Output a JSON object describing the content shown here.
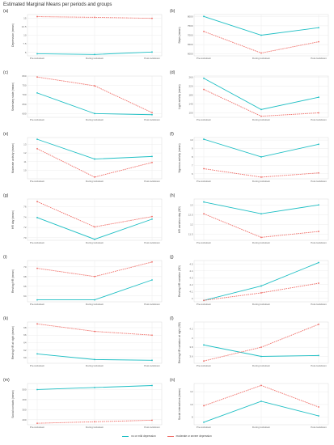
{
  "page": {
    "title": "Estimated Marginal Means per periods and groups"
  },
  "legend": {
    "items": [
      {
        "label": "no or mild depression",
        "color": "#1fbfc4"
      },
      {
        "label": "moderate or severe depression",
        "color": "#f0706a"
      }
    ]
  },
  "chart_data": [
    {
      "panel": "(a)",
      "type": "line",
      "ylabel": "Depression (mean)",
      "categories": [
        "Pre-lockdown",
        "During lockdown",
        "Post-lockdown"
      ],
      "ylim": [
        4,
        16
      ],
      "yticks": [
        5.0,
        7.5,
        10.0,
        12.5,
        15.0
      ],
      "series": [
        {
          "name": "no or mild depression",
          "values": [
            4.6,
            4.4,
            5.1
          ]
        },
        {
          "name": "moderate or severe depression",
          "values": [
            15.4,
            15.2,
            14.9
          ]
        }
      ]
    },
    {
      "panel": "(b)",
      "type": "line",
      "ylabel": "Steps (mean)",
      "categories": [
        "Pre-lockdown",
        "During lockdown",
        "Post-lockdown"
      ],
      "ylim": [
        5900,
        8100
      ],
      "yticks": [
        6000,
        6500,
        7000,
        7500,
        8000
      ],
      "series": [
        {
          "name": "no or mild depression",
          "values": [
            8000,
            7000,
            7400
          ]
        },
        {
          "name": "moderate or severe depression",
          "values": [
            7200,
            6050,
            6650
          ]
        }
      ]
    },
    {
      "panel": "(c)",
      "type": "line",
      "ylabel": "Sedentary state (mean)",
      "categories": [
        "Pre-lockdown",
        "During lockdown",
        "Post-lockdown"
      ],
      "ylim": [
        580,
        800
      ],
      "yticks": [
        600,
        650,
        700,
        750,
        800
      ],
      "series": [
        {
          "name": "no or mild depression",
          "values": [
            710,
            600,
            594
          ]
        },
        {
          "name": "moderate or severe depression",
          "values": [
            795,
            748,
            605
          ]
        }
      ]
    },
    {
      "panel": "(d)",
      "type": "line",
      "ylabel": "Light activity (mean)",
      "categories": [
        "Pre-lockdown",
        "During lockdown",
        "Post-lockdown"
      ],
      "ylim": [
        80,
        265
      ],
      "yticks": [
        100,
        140,
        180,
        220,
        260
      ],
      "series": [
        {
          "name": "no or mild depression",
          "values": [
            255,
            115,
            170
          ]
        },
        {
          "name": "moderate or severe depression",
          "values": [
            205,
            85,
            100
          ]
        }
      ]
    },
    {
      "panel": "(e)",
      "type": "line",
      "ylabel": "Moderate activity (mean)",
      "categories": [
        "Pre-lockdown",
        "During lockdown",
        "Post-lockdown"
      ],
      "ylim": [
        9.0,
        13.8
      ],
      "yticks": [
        10,
        11,
        12,
        13
      ],
      "series": [
        {
          "name": "no or mild depression",
          "values": [
            13.6,
            11.3,
            11.6
          ]
        },
        {
          "name": "moderate or severe depression",
          "values": [
            12.5,
            9.2,
            10.9
          ]
        }
      ]
    },
    {
      "panel": "(f)",
      "type": "line",
      "ylabel": "Vigorous activity (mean)",
      "categories": [
        "Pre-lockdown",
        "During lockdown",
        "Post-lockdown"
      ],
      "ylim": [
        5.4,
        10.3
      ],
      "yticks": [
        6,
        7,
        8,
        9,
        10
      ],
      "series": [
        {
          "name": "no or mild depression",
          "values": [
            10.1,
            8.0,
            9.5
          ]
        },
        {
          "name": "moderate or severe depression",
          "values": [
            6.6,
            5.6,
            6.1
          ]
        }
      ]
    },
    {
      "panel": "(g)",
      "type": "line",
      "ylabel": "HR day (mean)",
      "categories": [
        "Pre-lockdown",
        "During lockdown",
        "Post-lockdown"
      ],
      "ylim": [
        69.5,
        77.5
      ],
      "yticks": [
        70,
        72,
        74,
        76
      ],
      "series": [
        {
          "name": "no or mild depression",
          "values": [
            73.9,
            69.7,
            73.6
          ]
        },
        {
          "name": "moderate or severe depression",
          "values": [
            77.0,
            72.1,
            74.1
          ]
        }
      ]
    },
    {
      "panel": "(h)",
      "type": "line",
      "ylabel": "HR variation day (SD)",
      "categories": [
        "Pre-lockdown",
        "During lockdown",
        "Post-lockdown"
      ],
      "ylim": [
        11.2,
        13.3
      ],
      "yticks": [
        11.5,
        12.0,
        12.5,
        13.0
      ],
      "series": [
        {
          "name": "no or mild depression",
          "values": [
            13.15,
            12.55,
            13.0
          ]
        },
        {
          "name": "moderate or severe depression",
          "values": [
            12.55,
            11.35,
            11.65
          ]
        }
      ]
    },
    {
      "panel": "(i)",
      "type": "line",
      "ylabel": "Resting HR (mean)",
      "categories": [
        "Pre-lockdown",
        "During lockdown",
        "Post-lockdown"
      ],
      "ylim": [
        62.8,
        71.3
      ],
      "yticks": [
        64,
        66,
        68,
        70
      ],
      "series": [
        {
          "name": "no or mild depression",
          "values": [
            63.2,
            63.2,
            67.3
          ]
        },
        {
          "name": "moderate or severe depression",
          "values": [
            69.7,
            68.0,
            71.0
          ]
        }
      ]
    },
    {
      "panel": "(j)",
      "type": "line",
      "ylabel": "Resting HR variation (SD)",
      "categories": [
        "Pre-lockdown",
        "During lockdown",
        "Post-lockdown"
      ],
      "ylim": [
        3.95,
        4.55
      ],
      "yticks": [
        4.0,
        4.1,
        4.2,
        4.3,
        4.4,
        4.5
      ],
      "series": [
        {
          "name": "no or mild depression",
          "values": [
            3.97,
            4.18,
            4.52
          ]
        },
        {
          "name": "moderate or severe depression",
          "values": [
            3.97,
            4.08,
            4.22
          ]
        }
      ]
    },
    {
      "panel": "(k)",
      "type": "line",
      "ylabel": "Resting HR at night (mean)",
      "categories": [
        "Pre-lockdown",
        "During lockdown",
        "Post-lockdown"
      ],
      "ylim": [
        58.5,
        69.5
      ],
      "yticks": [
        60,
        62,
        64,
        66,
        68
      ],
      "series": [
        {
          "name": "no or mild depression",
          "values": [
            61.0,
            59.5,
            59.3
          ]
        },
        {
          "name": "moderate or severe depression",
          "values": [
            69.0,
            67.0,
            66.0
          ]
        }
      ]
    },
    {
      "panel": "(l)",
      "type": "line",
      "ylabel": "Resting HR variation at night (SD)",
      "categories": [
        "Pre-lockdown",
        "During lockdown",
        "Post-lockdown"
      ],
      "ylim": [
        3.45,
        4.35
      ],
      "yticks": [
        3.6,
        3.8,
        4.0,
        4.2
      ],
      "series": [
        {
          "name": "no or mild depression",
          "values": [
            3.85,
            3.6,
            3.62
          ]
        },
        {
          "name": "moderate or severe depression",
          "values": [
            3.5,
            3.8,
            4.3
          ]
        }
      ]
    },
    {
      "panel": "(m)",
      "type": "line",
      "ylabel": "Social contacts (mean)",
      "categories": [
        "Pre-lockdown",
        "During lockdown",
        "Post-lockdown"
      ],
      "ylim": [
        150,
        560
      ],
      "yticks": [
        200,
        300,
        400,
        500
      ],
      "series": [
        {
          "name": "no or mild depression",
          "values": [
            500,
            520,
            540
          ]
        },
        {
          "name": "moderate or severe depression",
          "values": [
            165,
            180,
            195
          ]
        }
      ]
    },
    {
      "panel": "(n)",
      "type": "line",
      "ylabel": "Social interactions (mean)",
      "categories": [
        "Pre-lockdown",
        "During lockdown",
        "Post-lockdown"
      ],
      "ylim": [
        6.8,
        13.3
      ],
      "yticks": [
        8,
        10,
        12
      ],
      "series": [
        {
          "name": "no or mild depression",
          "values": [
            7.2,
            10.5,
            8.2
          ]
        },
        {
          "name": "moderate or severe depression",
          "values": [
            9.8,
            13.0,
            9.6
          ]
        }
      ]
    }
  ]
}
